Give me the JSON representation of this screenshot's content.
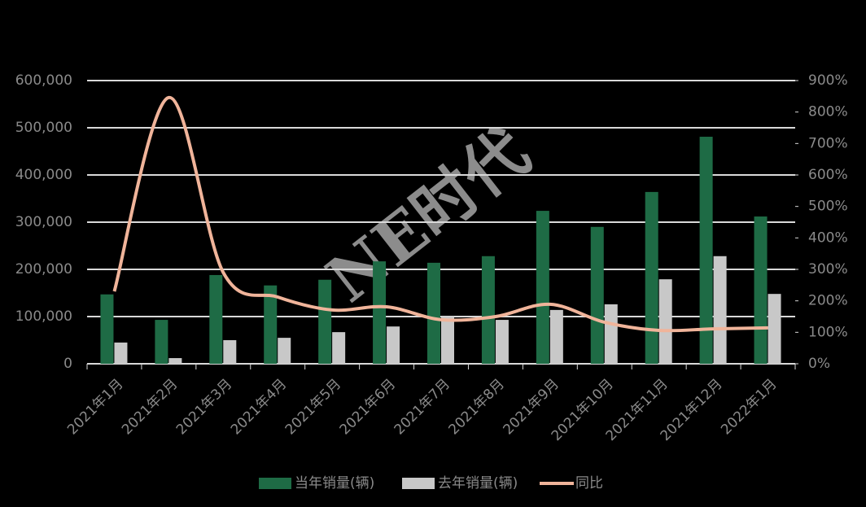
{
  "chart_data": {
    "type": "bar-line",
    "watermark": "NE时代",
    "categories": [
      "2021年1月",
      "2021年2月",
      "2021年3月",
      "2021年4月",
      "2021年5月",
      "2021年6月",
      "2021年7月",
      "2021年8月",
      "2021年9月",
      "2021年10月",
      "2021年11月",
      "2021年12月",
      "2022年1月"
    ],
    "series": [
      {
        "name": "当年销量(辆)",
        "kind": "bar",
        "color": "#1e6b45",
        "values": [
          147000,
          93000,
          188000,
          166000,
          178000,
          217000,
          214000,
          228000,
          324000,
          290000,
          364000,
          481000,
          312000
        ]
      },
      {
        "name": "去年销量(辆)",
        "kind": "bar",
        "color": "#c8c8c8",
        "values": [
          45000,
          12000,
          50000,
          55000,
          67000,
          79000,
          100000,
          93000,
          114000,
          126000,
          179000,
          228000,
          148000
        ]
      },
      {
        "name": "同比",
        "kind": "line",
        "axis": "y2",
        "color": "#f0b49a",
        "values": [
          230,
          846,
          290,
          212,
          171,
          181,
          140,
          150,
          189,
          132,
          106,
          111,
          114
        ]
      }
    ],
    "ylim": [
      0,
      600000
    ],
    "yticks": [
      0,
      {
        "value": 100000,
        "label": "100,000"
      },
      {
        "value": 200000,
        "label": "200,000"
      },
      {
        "value": 300000,
        "label": "300,000"
      },
      {
        "value": 400000,
        "label": "400,000"
      },
      {
        "value": 500000,
        "label": "500,000"
      },
      {
        "value": 600000,
        "label": "600,000"
      }
    ],
    "y2lim": [
      0,
      900
    ],
    "y2ticks": [
      {
        "value": 0,
        "label": "0%"
      },
      {
        "value": 100,
        "label": "100%"
      },
      {
        "value": 200,
        "label": "200%"
      },
      {
        "value": 300,
        "label": "300%"
      },
      {
        "value": 400,
        "label": "400%"
      },
      {
        "value": 500,
        "label": "500%"
      },
      {
        "value": 600,
        "label": "600%"
      },
      {
        "value": 700,
        "label": "700%"
      },
      {
        "value": 800,
        "label": "800%"
      },
      {
        "value": 900,
        "label": "900%"
      }
    ],
    "grid": true,
    "legend": "bottom"
  }
}
